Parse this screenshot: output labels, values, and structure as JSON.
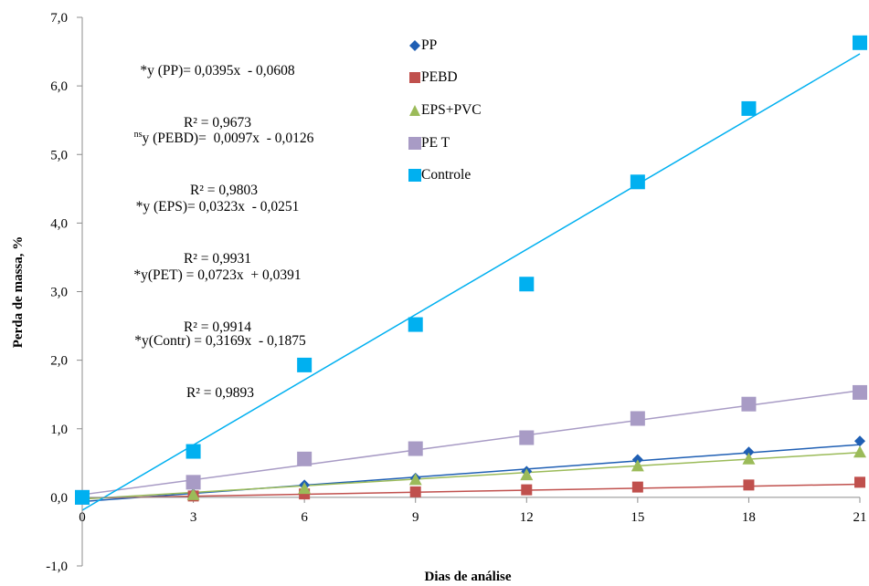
{
  "chart_data": {
    "type": "scatter",
    "xlabel": "Dias de análise",
    "ylabel": "Perda de massa, %",
    "xlim": [
      0,
      21
    ],
    "ylim": [
      -1.0,
      7.0
    ],
    "x_ticks": [
      "0",
      "3",
      "6",
      "9",
      "12",
      "15",
      "18",
      "21"
    ],
    "y_ticks": [
      "-1,0",
      "0,0",
      "1,0",
      "2,0",
      "3,0",
      "4,0",
      "5,0",
      "6,0",
      "7,0"
    ],
    "x_tick_values": [
      0,
      3,
      6,
      9,
      12,
      15,
      18,
      21
    ],
    "y_tick_values": [
      -1,
      0,
      1,
      2,
      3,
      4,
      5,
      6,
      7
    ],
    "grid": false,
    "legend_position": "top-right",
    "x": [
      0,
      3,
      6,
      9,
      12,
      15,
      18,
      21
    ],
    "series": [
      {
        "name": "PP",
        "marker": "diamond",
        "color": "#1f5fb4",
        "values": [
          0.0,
          0.05,
          0.18,
          0.28,
          0.38,
          0.55,
          0.66,
          0.82
        ],
        "trend": {
          "slope": 0.0395,
          "intercept": -0.0608
        }
      },
      {
        "name": "PEBD",
        "marker": "square",
        "color": "#c0504d",
        "values": [
          0.0,
          0.02,
          0.05,
          0.08,
          0.11,
          0.15,
          0.18,
          0.22
        ],
        "trend": {
          "slope": 0.0097,
          "intercept": -0.0126
        }
      },
      {
        "name": "EPS+PVC",
        "marker": "triangle",
        "color": "#9bbb59",
        "values": [
          0.0,
          0.04,
          0.13,
          0.26,
          0.33,
          0.46,
          0.56,
          0.66
        ],
        "trend": {
          "slope": 0.0323,
          "intercept": -0.0251
        }
      },
      {
        "name": "PE T",
        "marker": "square",
        "color": "#a89bc5",
        "values": [
          0.0,
          0.22,
          0.56,
          0.71,
          0.87,
          1.15,
          1.36,
          1.53
        ],
        "trend": {
          "slope": 0.0723,
          "intercept": 0.0391
        }
      },
      {
        "name": "Controle",
        "marker": "square",
        "color": "#00b0f0",
        "values": [
          0.0,
          0.67,
          1.93,
          2.52,
          3.11,
          4.6,
          5.67,
          6.63
        ],
        "trend": {
          "slope": 0.3169,
          "intercept": -0.1875
        }
      }
    ],
    "annotations": [
      {
        "line1": "*y (PP)= 0,0395x  - 0,0608",
        "line2": "R² = 0,9673"
      },
      {
        "sup": "ns",
        "line1": "y (PEBD)=  0,0097x  - 0,0126",
        "line2": "R² = 0,9803"
      },
      {
        "line1": "*y (EPS)= 0,0323x  - 0,0251",
        "line2": "R² = 0,9931"
      },
      {
        "line1": "*y(PET) = 0,0723x  + 0,0391",
        "line2": "R² = 0,9914"
      },
      {
        "line1": "*y(Contr) = 0,3169x  - 0,1875",
        "line2": "R² = 0,9893"
      }
    ]
  }
}
